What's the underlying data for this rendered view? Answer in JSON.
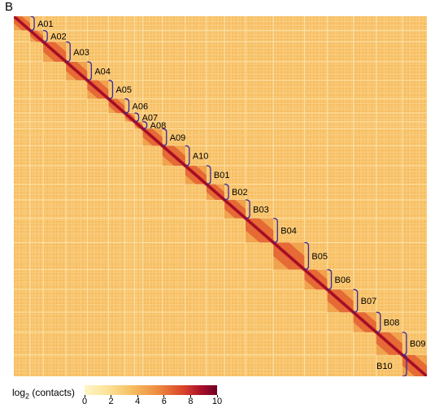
{
  "panel_label": "B",
  "chart_data": {
    "type": "heatmap",
    "title": "",
    "description_axis": "Hi-C contact map, lower triangle x upper triangle symmetric",
    "chromosomes": [
      "A01",
      "A02",
      "A03",
      "A04",
      "A05",
      "A06",
      "A07",
      "A08",
      "A09",
      "A10",
      "B01",
      "B02",
      "B03",
      "B04",
      "B05",
      "B06",
      "B07",
      "B08",
      "B09",
      "B10"
    ],
    "chromosome_sizes": [
      5.0,
      4.0,
      7.0,
      6.5,
      6.5,
      5.0,
      3.0,
      2.5,
      6.0,
      7.0,
      6.5,
      5.5,
      6.5,
      8.5,
      9.5,
      7.0,
      8.0,
      7.0,
      8.0,
      7.5
    ],
    "colorbar": {
      "label_main": "log",
      "label_sub": "2",
      "label_rest": "(contacts)",
      "ticks": [
        "0",
        "2",
        "4",
        "6",
        "8",
        "10"
      ],
      "range": [
        0,
        10
      ]
    },
    "colors": {
      "background": "#f7c26a",
      "diagonal": "#c4162a",
      "bracket": "#3a2a9a"
    }
  }
}
